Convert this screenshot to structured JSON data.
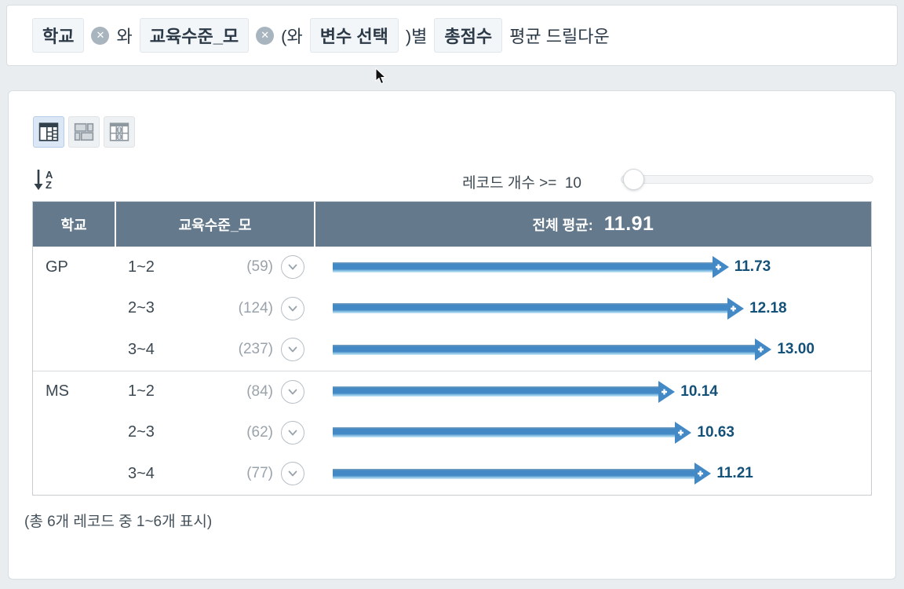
{
  "title_bar": {
    "chip_dim1": "학교",
    "conj1": "와",
    "chip_dim2": "교육수준_모",
    "conj2": "(와",
    "chip_var_select": "변수 선택",
    "conj3": ")별",
    "chip_measure": "총점수",
    "suffix": "평균 드릴다운"
  },
  "toolbar": {
    "sort_letter_a": "A",
    "sort_letter_z": "Z",
    "filter_label": "레코드 개수 >=",
    "filter_value": "10"
  },
  "table": {
    "col1_header": "학교",
    "col2_header": "교육수준_모",
    "overall_label": "전체 평균:",
    "overall_value": "11.91",
    "rows": [
      {
        "school": "GP",
        "level": "1~2",
        "count": "(59)",
        "value": 11.73,
        "label": "11.73"
      },
      {
        "school": "",
        "level": "2~3",
        "count": "(124)",
        "value": 12.18,
        "label": "12.18"
      },
      {
        "school": "",
        "level": "3~4",
        "count": "(237)",
        "value": 13.0,
        "label": "13.00"
      },
      {
        "school": "MS",
        "level": "1~2",
        "count": "(84)",
        "value": 10.14,
        "label": "10.14"
      },
      {
        "school": "",
        "level": "2~3",
        "count": "(62)",
        "value": 10.63,
        "label": "10.63"
      },
      {
        "school": "",
        "level": "3~4",
        "count": "(77)",
        "value": 11.21,
        "label": "11.21"
      }
    ]
  },
  "chart_data": {
    "type": "bar",
    "title": "학교 와 교육수준_모 별 총점수 평균 드릴다운",
    "categories": [
      "GP 1~2",
      "GP 2~3",
      "GP 3~4",
      "MS 1~2",
      "MS 2~3",
      "MS 3~4"
    ],
    "values": [
      11.73,
      12.18,
      13.0,
      10.14,
      10.63,
      11.21
    ],
    "counts": [
      59,
      124,
      237,
      84,
      62,
      77
    ],
    "overall_mean": 11.91,
    "xlabel": "총점수 평균",
    "ylabel": "학교 / 교육수준_모",
    "xmax": 13.0,
    "bar_color": "#4289c5",
    "orientation": "horizontal"
  },
  "footer": {
    "summary": "(총 6개 레코드 중 1~6개 표시)"
  },
  "colors": {
    "header_bg": "#64798c",
    "bar_blue": "#4289c5",
    "value_text": "#145179",
    "accent_active": "#dbe7f5"
  }
}
